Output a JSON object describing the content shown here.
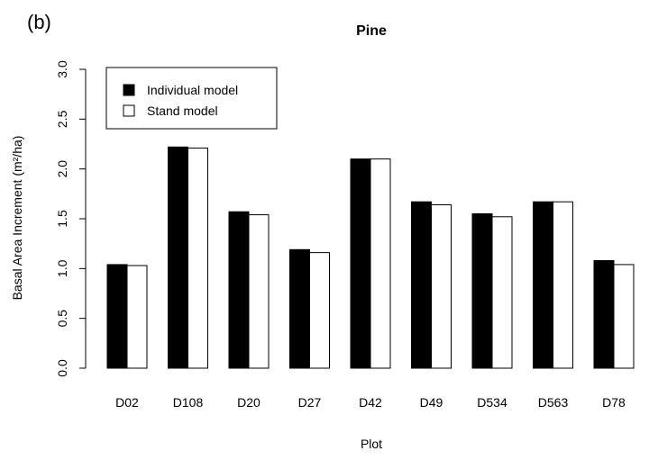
{
  "panel_label": "(b)",
  "chart_data": {
    "type": "bar",
    "title": "Pine",
    "xlabel": "Plot",
    "ylabel": "Basal Area Increment (m²/ha)",
    "ylim": [
      0,
      3
    ],
    "yticks": [
      "0.0",
      "0.5",
      "1.0",
      "1.5",
      "2.0",
      "2.5",
      "3.0"
    ],
    "categories": [
      "D02",
      "D108",
      "D20",
      "D27",
      "D42",
      "D49",
      "D534",
      "D563",
      "D78"
    ],
    "grid": false,
    "legend_position": "top-left",
    "series": [
      {
        "name": "Individual model",
        "color": "#000000",
        "values": [
          1.04,
          2.22,
          1.57,
          1.19,
          2.1,
          1.67,
          1.55,
          1.67,
          1.08
        ]
      },
      {
        "name": "Stand model",
        "color": "#ffffff",
        "values": [
          1.03,
          2.21,
          1.54,
          1.16,
          2.1,
          1.64,
          1.52,
          1.67,
          1.04
        ]
      }
    ]
  }
}
